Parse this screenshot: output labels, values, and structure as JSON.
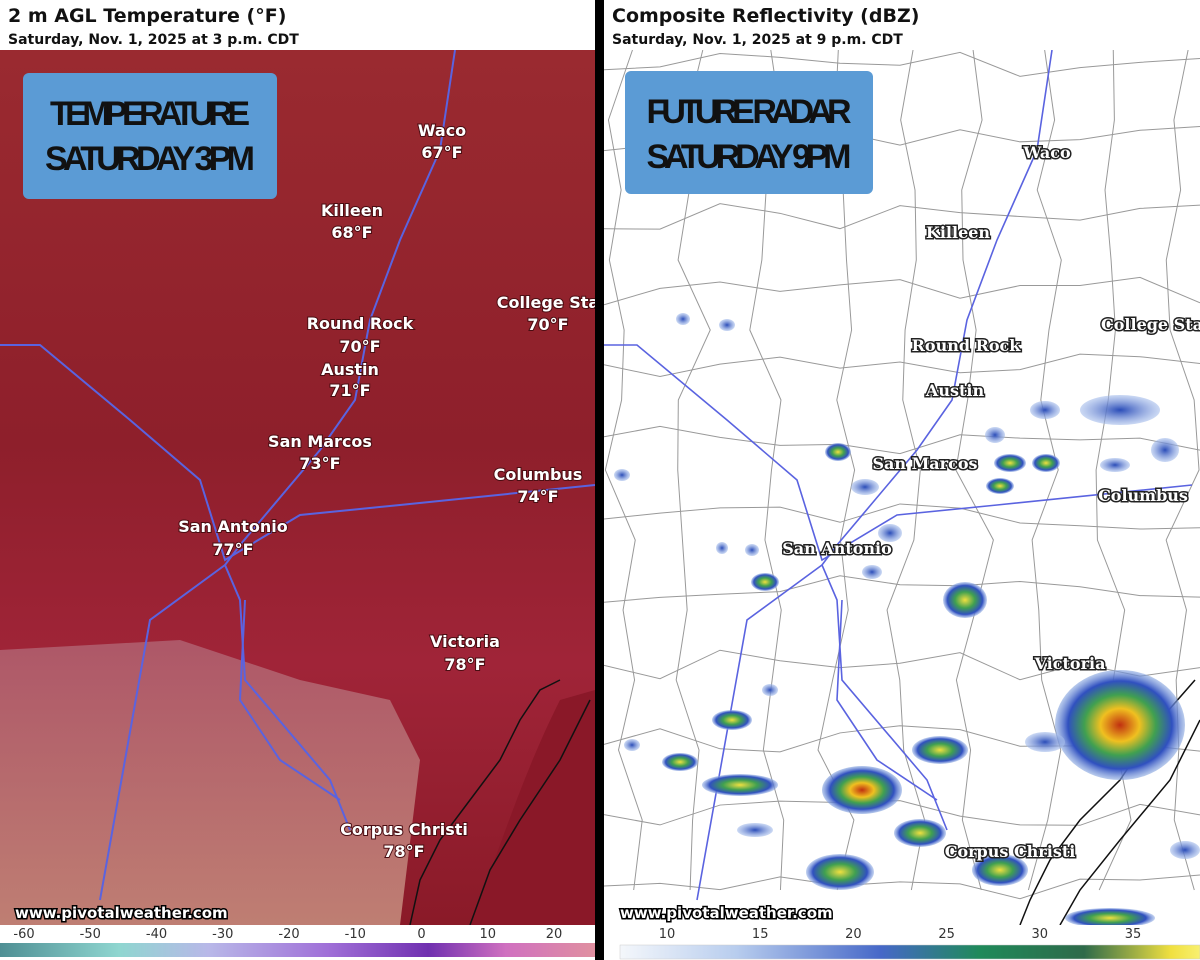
{
  "left": {
    "title": "2 m AGL Temperature (°F)",
    "subtitle": "Saturday, Nov. 1, 2025 at 3 p.m. CDT",
    "badge": [
      "TEMPERATURE",
      "SATURDAY 3PM"
    ],
    "cities": [
      {
        "name": "Waco",
        "temp": "67°F"
      },
      {
        "name": "Killeen",
        "temp": "68°F"
      },
      {
        "name": "College Sta",
        "temp": "70°F"
      },
      {
        "name": "Round Rock",
        "temp": "70°F"
      },
      {
        "name": "Austin",
        "temp": "71°F"
      },
      {
        "name": "San Marcos",
        "temp": "73°F"
      },
      {
        "name": "Columbus",
        "temp": "74°F"
      },
      {
        "name": "San Antonio",
        "temp": "77°F"
      },
      {
        "name": "Victoria",
        "temp": "78°F"
      },
      {
        "name": "Corpus Christi",
        "temp": "78°F"
      }
    ],
    "credit": "www.pivotalweather.com",
    "scale_ticks": [
      -60,
      -50,
      -40,
      -30,
      -20,
      -10,
      0,
      10,
      20
    ]
  },
  "right": {
    "title": "Composite Reflectivity (dBZ)",
    "subtitle": "Saturday, Nov. 1, 2025 at 9 p.m. CDT",
    "badge": [
      "FUTURE RADAR",
      "SATURDAY 9PM"
    ],
    "cities": [
      "Waco",
      "Killeen",
      "College Sta",
      "Round Rock",
      "Austin",
      "San Marcos",
      "Columbus",
      "San Antonio",
      "Victoria",
      "Corpus Christi"
    ],
    "credit": "www.pivotalweather.com",
    "scale_ticks": [
      10,
      15,
      20,
      25,
      30,
      35
    ]
  }
}
